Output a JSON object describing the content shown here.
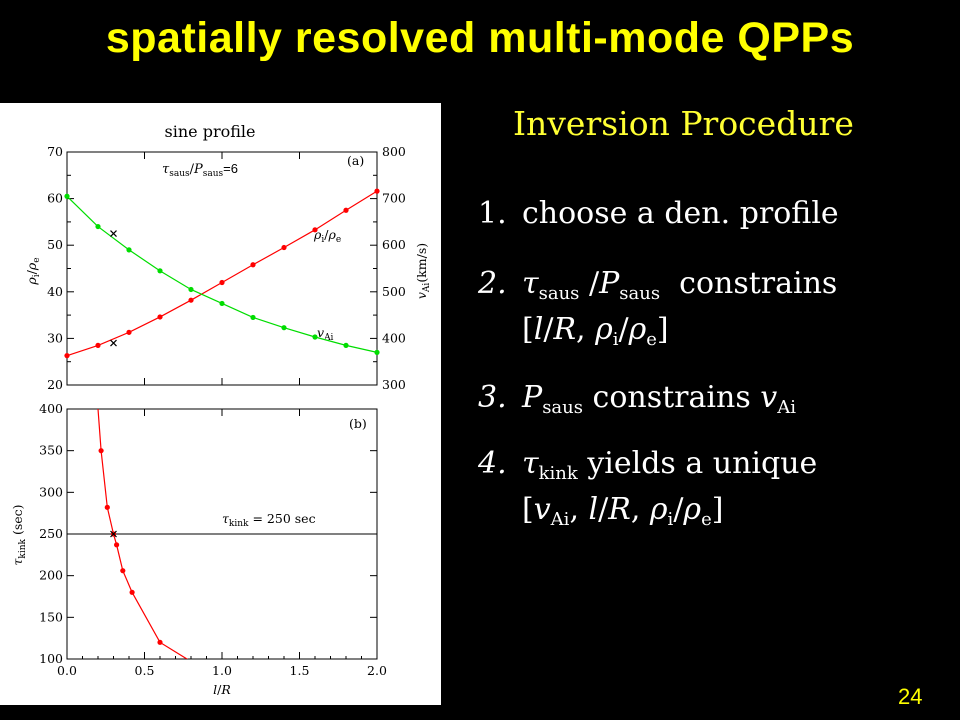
{
  "slide": {
    "title": "spatially resolved multi-mode QPPs",
    "subtitle": "Inversion Procedure",
    "page_number": "24",
    "colors": {
      "background": "#000000",
      "title": "#ffff00",
      "subtitle": "#ffff33",
      "body_text": "#ffffff"
    }
  },
  "steps": [
    {
      "num": "1.",
      "text": "choose a den. profile"
    },
    {
      "num": "2.",
      "tau": "τ",
      "tau_sub": "saus",
      "slash": "/",
      "p": "P",
      "p_sub": "saus",
      "text": "constrains",
      "line2": {
        "open": "[",
        "l": "l",
        "sep1": "/",
        "r": "R",
        "comma": ", ",
        "rho_i": "ρ",
        "sub_i": "i",
        "sep2": "/",
        "rho_e": "ρ",
        "sub_e": "e",
        "close": "]"
      }
    },
    {
      "num": "3.",
      "p": "P",
      "p_sub": "saus",
      "text": "constrains",
      "v": "v",
      "v_sub": "Ai"
    },
    {
      "num": "4.",
      "tau": "τ",
      "tau_sub": "kink",
      "text": "yields a unique",
      "line2": {
        "open": "[",
        "v": "v",
        "v_sub": "Ai",
        "comma1": ", ",
        "l": "l",
        "sep1": "/",
        "r": "R",
        "comma2": ", ",
        "rho_i": "ρ",
        "sub_i": "i",
        "sep2": "/",
        "rho_e": "ρ",
        "sub_e": "e",
        "close": "]"
      }
    }
  ],
  "chart_data": [
    {
      "type": "line",
      "title": "sine profile",
      "panel_label": "(a)",
      "annotation": {
        "tau": "τ",
        "tau_sub": "saus",
        "slash": "/",
        "p": "P",
        "p_sub": "saus",
        "eq": "=6"
      },
      "x": [
        0.0,
        0.2,
        0.4,
        0.6,
        0.8,
        1.0,
        1.2,
        1.4,
        1.6,
        1.8,
        2.0
      ],
      "xlim": [
        0.0,
        2.0
      ],
      "ylim_left": [
        20,
        70
      ],
      "ylim_right": [
        300,
        800
      ],
      "ylabel_left": {
        "rho": "ρ",
        "sub_i": "i",
        "slash": "/",
        "rho_e": "ρ",
        "sub_e": "e"
      },
      "ylabel_right": {
        "v": "v",
        "sub": "Ai",
        "unit": "(km/s)"
      },
      "yticks_left": [
        "70",
        "60",
        "50",
        "40",
        "30",
        "20"
      ],
      "yticks_right": [
        "800",
        "700",
        "600",
        "500",
        "400",
        "300"
      ],
      "grid": false,
      "series": [
        {
          "name": {
            "rho": "ρ",
            "sub_i": "i",
            "slash": "/",
            "rho_e": "ρ",
            "sub_e": "e"
          },
          "axis": "left",
          "color": "#ff0000",
          "values": [
            26.3,
            28.5,
            31.3,
            34.6,
            38.2,
            42.0,
            45.8,
            49.5,
            53.3,
            57.5,
            61.6
          ]
        },
        {
          "name": {
            "v": "v",
            "sub": "Ai"
          },
          "axis": "right",
          "color": "#00dd00",
          "values": [
            705,
            640,
            590,
            545,
            505,
            475,
            445,
            423,
            403,
            385,
            370
          ]
        }
      ],
      "markers": [
        {
          "x": 0.3,
          "y": 52.5,
          "axis": "left",
          "symbol": "×"
        },
        {
          "x": 0.3,
          "y": 29.0,
          "axis": "left",
          "symbol": "×"
        }
      ]
    },
    {
      "type": "line",
      "panel_label": "(b)",
      "x": [
        0.2,
        0.22,
        0.26,
        0.3,
        0.32,
        0.36,
        0.42,
        0.6,
        0.8
      ],
      "y": [
        400,
        350,
        282,
        250,
        237,
        206,
        180,
        120,
        97
      ],
      "xlim": [
        0.0,
        2.0
      ],
      "ylim": [
        100,
        400
      ],
      "xticks": [
        "0.0",
        "0.5",
        "1.0",
        "1.5",
        "2.0"
      ],
      "yticks": [
        "400",
        "350",
        "300",
        "250",
        "200",
        "150",
        "100"
      ],
      "xlabel": {
        "l": "l",
        "slash": "/",
        "r": "R"
      },
      "ylabel": {
        "tau": "τ",
        "sub": "kink",
        "unit": " (sec)"
      },
      "series_color": "#ff0000",
      "hline": {
        "y": 250,
        "label": {
          "tau": "τ",
          "sub": "kink",
          "text": " = 250 sec"
        }
      },
      "marker": {
        "x": 0.3,
        "y": 250,
        "symbol": "×"
      },
      "grid": false
    }
  ]
}
